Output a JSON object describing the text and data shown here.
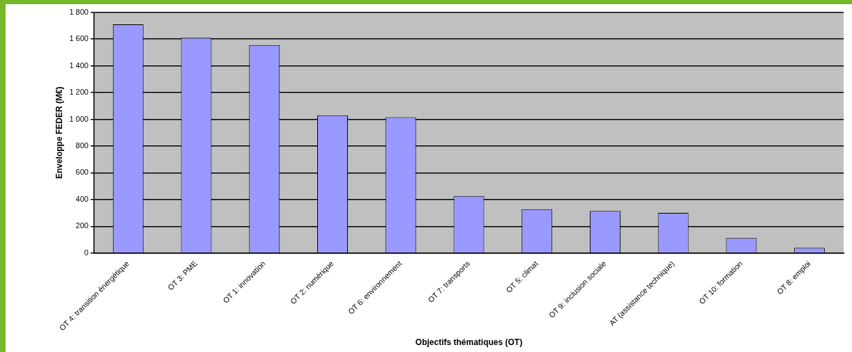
{
  "chart_data": {
    "type": "bar",
    "xlabel": "Objectifs thématiques (OT)",
    "ylabel": "Enveloppe FEDER (M€)",
    "categories": [
      "OT 4: transition énergétique",
      "OT 3: PME",
      "OT 1: innovation",
      "OT 2: numérique",
      "OT 6: environnement",
      "OT 7: transports",
      "OT 5: climat",
      "OT 9: inclusion sociale",
      "AT (assistance technique)",
      "OT 10: formation",
      "OT 8: emploi"
    ],
    "values": [
      1710,
      1610,
      1555,
      1030,
      1015,
      427,
      328,
      315,
      301,
      112,
      40
    ],
    "color": "#9999ff",
    "ylim": [
      0,
      1800
    ],
    "yticks": [
      0,
      200,
      400,
      600,
      800,
      {
        "value": 1000,
        "label": "1 000"
      },
      {
        "value": 1200,
        "label": "1 200"
      },
      {
        "value": 1400,
        "label": "1 400"
      },
      {
        "value": 1600,
        "label": "1 600"
      },
      {
        "value": 1800,
        "label": "1 800"
      }
    ],
    "grid": "y",
    "legend": false
  }
}
